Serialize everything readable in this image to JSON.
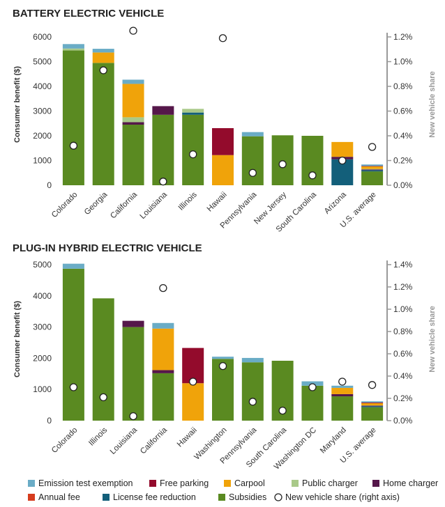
{
  "segment_keys": [
    "subsidies",
    "license",
    "annual",
    "home",
    "public",
    "carpool",
    "parking",
    "emission"
  ],
  "colors": {
    "emission": "#6aacc6",
    "parking": "#930b2c",
    "carpool": "#f0a30a",
    "public": "#a9c989",
    "home": "#55174a",
    "annual": "#d63c1e",
    "license": "#135f7a",
    "subsidies": "#5a8a21",
    "axis": "#999999",
    "marker_stroke": "#222222"
  },
  "legend": [
    {
      "key": "emission",
      "label": "Emission test exemption",
      "marker": "square"
    },
    {
      "key": "parking",
      "label": "Free parking",
      "marker": "square"
    },
    {
      "key": "carpool",
      "label": "Carpool",
      "marker": "square"
    },
    {
      "key": "public",
      "label": "Public charger",
      "marker": "square"
    },
    {
      "key": "home",
      "label": "Home charger",
      "marker": "square"
    },
    {
      "key": "annual",
      "label": "Annual fee",
      "marker": "square"
    },
    {
      "key": "license",
      "label": "License fee reduction",
      "marker": "square"
    },
    {
      "key": "subsidies",
      "label": "Subsidies",
      "marker": "square"
    },
    {
      "key": "share",
      "label": "New vehicle share (right axis)",
      "marker": "circle"
    }
  ],
  "chart_data": [
    {
      "type": "bar",
      "stacked": true,
      "title": "BATTERY ELECTRIC VEHICLE",
      "ylabel": "Consumer benefit ($)",
      "y2label": "New vehicle share",
      "ylim": [
        0,
        6000
      ],
      "yticks": [
        0,
        1000,
        2000,
        3000,
        4000,
        5000,
        6000
      ],
      "y2lim": [
        0,
        1.3
      ],
      "y2ticks": [
        "0.0%",
        "0.2%",
        "0.4%",
        "0.6%",
        "0.8%",
        "1.0%",
        "1.2%"
      ],
      "y2tick_values": [
        0,
        0.2,
        0.4,
        0.6,
        0.8,
        1.0,
        1.2
      ],
      "categories": [
        "Colorado",
        "Georgia",
        "California",
        "Louisiana",
        "Illinois",
        "Hawaii",
        "Pennsylvania",
        "New Jersey",
        "South Carolina",
        "Arizona",
        "U.S. average"
      ],
      "series": [
        {
          "key": "subsidies",
          "name": "Subsidies",
          "values": [
            5450,
            4950,
            2450,
            2850,
            2850,
            0,
            1980,
            2020,
            2000,
            0,
            560
          ]
        },
        {
          "key": "license",
          "name": "License fee reduction",
          "values": [
            0,
            0,
            0,
            0,
            90,
            0,
            0,
            0,
            0,
            1050,
            50
          ]
        },
        {
          "key": "annual",
          "name": "Annual fee",
          "values": [
            0,
            0,
            0,
            0,
            0,
            0,
            0,
            0,
            0,
            0,
            0
          ]
        },
        {
          "key": "home",
          "name": "Home charger",
          "values": [
            0,
            0,
            100,
            350,
            0,
            0,
            0,
            0,
            0,
            100,
            30
          ]
        },
        {
          "key": "public",
          "name": "Public charger",
          "values": [
            80,
            0,
            200,
            0,
            150,
            0,
            0,
            0,
            0,
            0,
            20
          ]
        },
        {
          "key": "carpool",
          "name": "Carpool",
          "values": [
            0,
            420,
            1350,
            0,
            0,
            1220,
            0,
            0,
            0,
            600,
            100
          ]
        },
        {
          "key": "parking",
          "name": "Free parking",
          "values": [
            0,
            0,
            0,
            0,
            0,
            1090,
            0,
            0,
            0,
            0,
            20
          ]
        },
        {
          "key": "emission",
          "name": "Emission test exemption",
          "values": [
            180,
            150,
            170,
            0,
            0,
            0,
            170,
            0,
            0,
            0,
            60
          ]
        }
      ],
      "share": [
        0.32,
        0.93,
        1.25,
        0.03,
        0.25,
        1.19,
        0.1,
        0.17,
        0.08,
        0.2,
        0.31
      ]
    },
    {
      "type": "bar",
      "stacked": true,
      "title": "PLUG-IN HYBRID ELECTRIC VEHICLE",
      "ylabel": "Consumer benefit ($)",
      "y2label": "New vehicle share",
      "ylim": [
        0,
        5000
      ],
      "yticks": [
        0,
        1000,
        2000,
        3000,
        4000,
        5000
      ],
      "y2lim": [
        0,
        1.4
      ],
      "y2ticks": [
        "0.0%",
        "0.2%",
        "0.4%",
        "0.6%",
        "0.8%",
        "1.0%",
        "1.2%",
        "1.4%"
      ],
      "y2tick_values": [
        0,
        0.2,
        0.4,
        0.6,
        0.8,
        1.0,
        1.2,
        1.4
      ],
      "categories": [
        "Colorado",
        "Illinois",
        "Louisiana",
        "California",
        "Hawaii",
        "Washington",
        "Pennsylvania",
        "South Carolina",
        "Washington DC",
        "Maryland",
        "U.S. average"
      ],
      "series": [
        {
          "key": "subsidies",
          "name": "Subsidies",
          "values": [
            4870,
            3920,
            3000,
            1520,
            0,
            1980,
            1870,
            1920,
            1120,
            780,
            430
          ]
        },
        {
          "key": "license",
          "name": "License fee reduction",
          "values": [
            0,
            0,
            0,
            0,
            0,
            0,
            0,
            0,
            0,
            0,
            30
          ]
        },
        {
          "key": "annual",
          "name": "Annual fee",
          "values": [
            0,
            0,
            0,
            0,
            0,
            0,
            0,
            0,
            0,
            0,
            0
          ]
        },
        {
          "key": "home",
          "name": "Home charger",
          "values": [
            0,
            0,
            200,
            100,
            0,
            0,
            0,
            0,
            0,
            70,
            20
          ]
        },
        {
          "key": "public",
          "name": "Public charger",
          "values": [
            0,
            0,
            0,
            0,
            0,
            0,
            0,
            0,
            0,
            0,
            10
          ]
        },
        {
          "key": "carpool",
          "name": "Carpool",
          "values": [
            0,
            0,
            0,
            1330,
            1200,
            0,
            0,
            0,
            0,
            200,
            70
          ]
        },
        {
          "key": "parking",
          "name": "Free parking",
          "values": [
            0,
            0,
            0,
            0,
            1130,
            0,
            0,
            0,
            0,
            0,
            20
          ]
        },
        {
          "key": "emission",
          "name": "Emission test exemption",
          "values": [
            160,
            0,
            0,
            180,
            0,
            70,
            140,
            0,
            140,
            70,
            40
          ]
        }
      ],
      "share": [
        0.3,
        0.21,
        0.04,
        1.19,
        0.35,
        0.49,
        0.17,
        0.09,
        0.3,
        0.35,
        0.32
      ]
    }
  ]
}
